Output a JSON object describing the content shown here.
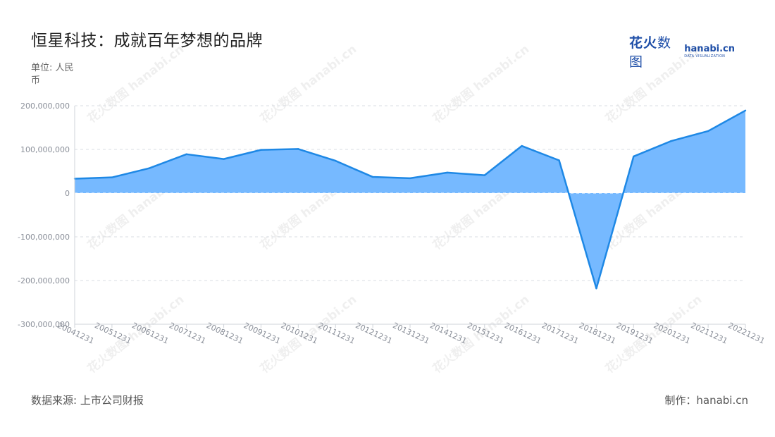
{
  "header": {
    "title": "恒星科技：成就百年梦想的品牌",
    "unit": "单位: 人民币"
  },
  "logo": {
    "cn_bold": "花火",
    "cn_thin": "数图",
    "en_main": "hanabi.cn",
    "en_sub": "DATA VISUALIZATION"
  },
  "footer": {
    "source": "数据来源: 上市公司财报",
    "maker": "制作：hanabi.cn"
  },
  "watermark": "花火数图 hanabi.cn",
  "chart_data": {
    "type": "area",
    "title": "恒星科技：成就百年梦想的品牌",
    "ylabel": "单位: 人民币",
    "ylim": [
      -300000000,
      200000000
    ],
    "yticks": [
      200000000,
      100000000,
      0,
      -100000000,
      -200000000,
      -300000000
    ],
    "ytick_labels": [
      "200,000,000",
      "100,000,000",
      "0",
      "-100,000,000",
      "-200,000,000",
      "-300,000,000"
    ],
    "grid": true,
    "color_line": "#1e88e5",
    "color_fill": "#76b9ff",
    "categories": [
      "20041231",
      "20051231",
      "20061231",
      "20071231",
      "20081231",
      "20091231",
      "20101231",
      "20111231",
      "20121231",
      "20131231",
      "20141231",
      "20151231",
      "20161231",
      "20171231",
      "20181231",
      "20191231",
      "20201231",
      "20211231",
      "20221231"
    ],
    "values": [
      33000000,
      36000000,
      57000000,
      89000000,
      78000000,
      99000000,
      101000000,
      74000000,
      37000000,
      34000000,
      47000000,
      41000000,
      108000000,
      75000000,
      -218000000,
      84000000,
      119000000,
      142000000,
      189000000
    ]
  }
}
